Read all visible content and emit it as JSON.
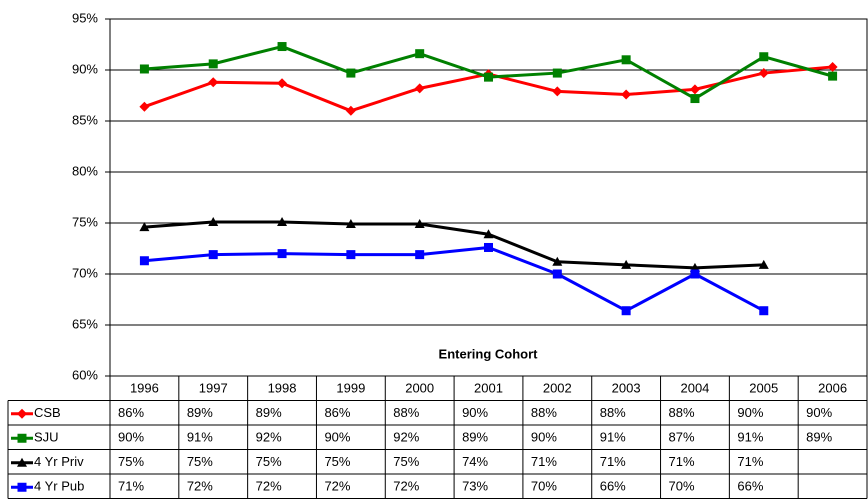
{
  "chart_data": {
    "type": "line",
    "x_label": "Entering Cohort",
    "categories": [
      "1996",
      "1997",
      "1998",
      "1999",
      "2000",
      "2001",
      "2002",
      "2003",
      "2004",
      "2005",
      "2006"
    ],
    "ylim": [
      60,
      95
    ],
    "yticks": [
      {
        "value": 60,
        "label": "60%"
      },
      {
        "value": 65,
        "label": "65%"
      },
      {
        "value": 70,
        "label": "70%"
      },
      {
        "value": 75,
        "label": "75%"
      },
      {
        "value": 80,
        "label": "80%"
      },
      {
        "value": 85,
        "label": "85%"
      },
      {
        "value": 90,
        "label": "90%"
      },
      {
        "value": 95,
        "label": "95%"
      }
    ],
    "grid": true,
    "series": [
      {
        "name": "CSB",
        "color": "#ff0000",
        "values": [
          86.4,
          88.8,
          88.7,
          86.0,
          88.2,
          89.6,
          87.9,
          87.6,
          88.1,
          89.7,
          90.3
        ],
        "value_labels": [
          "86%",
          "89%",
          "89%",
          "86%",
          "88%",
          "90%",
          "88%",
          "88%",
          "88%",
          "90%",
          "90%"
        ]
      },
      {
        "name": "SJU",
        "color": "#008000",
        "values": [
          90.1,
          90.6,
          92.3,
          89.7,
          91.6,
          89.3,
          89.7,
          91.0,
          87.2,
          91.3,
          89.4
        ],
        "value_labels": [
          "90%",
          "91%",
          "92%",
          "90%",
          "92%",
          "89%",
          "90%",
          "91%",
          "87%",
          "91%",
          "89%"
        ]
      },
      {
        "name": "4 Yr Priv",
        "color": "#000000",
        "values": [
          74.6,
          75.1,
          75.1,
          74.9,
          74.9,
          73.9,
          71.2,
          70.9,
          70.6,
          70.9,
          null
        ],
        "value_labels": [
          "75%",
          "75%",
          "75%",
          "75%",
          "75%",
          "74%",
          "71%",
          "71%",
          "71%",
          "71%",
          null
        ]
      },
      {
        "name": "4 Yr Pub",
        "color": "#0000ff",
        "values": [
          71.3,
          71.9,
          72.0,
          71.9,
          71.9,
          72.6,
          70.0,
          66.4,
          70.0,
          66.4,
          null
        ],
        "value_labels": [
          "71%",
          "72%",
          "72%",
          "72%",
          "72%",
          "73%",
          "70%",
          "66%",
          "70%",
          "66%",
          null
        ]
      }
    ]
  }
}
